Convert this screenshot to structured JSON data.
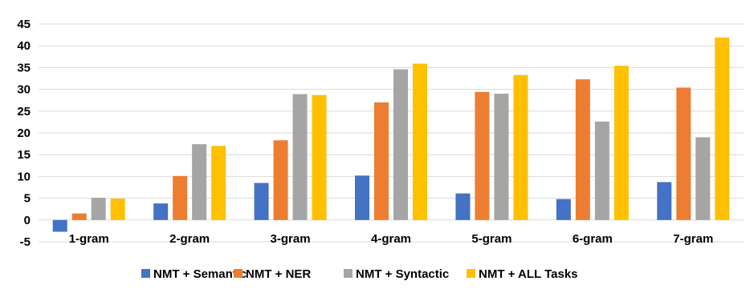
{
  "chart_data": {
    "type": "bar",
    "title": "",
    "xlabel": "",
    "ylabel": "",
    "categories": [
      "1-gram",
      "2-gram",
      "3-gram",
      "4-gram",
      "5-gram",
      "6-gram",
      "7-gram"
    ],
    "series": [
      {
        "name": "NMT + Semantic",
        "color": "#4472C4",
        "values": [
          -2.7,
          3.8,
          8.5,
          10.2,
          6.1,
          4.8,
          8.7
        ]
      },
      {
        "name": "NMT + NER",
        "color": "#ED7D31",
        "values": [
          1.5,
          10.1,
          18.3,
          27.0,
          29.4,
          32.3,
          30.4
        ]
      },
      {
        "name": "NMT + Syntactic",
        "color": "#A5A5A5",
        "values": [
          5.1,
          17.4,
          28.9,
          34.6,
          29.0,
          22.6,
          19.0
        ]
      },
      {
        "name": "NMT + ALL Tasks",
        "color": "#FFC000",
        "values": [
          4.9,
          17.0,
          28.7,
          35.9,
          33.3,
          35.4,
          41.9
        ]
      }
    ],
    "ylim": [
      -5,
      45
    ],
    "yticks": [
      "-5",
      "0",
      "5",
      "10",
      "15",
      "20",
      "25",
      "30",
      "35",
      "40",
      "45"
    ],
    "grid": true,
    "legend_position": "bottom"
  }
}
